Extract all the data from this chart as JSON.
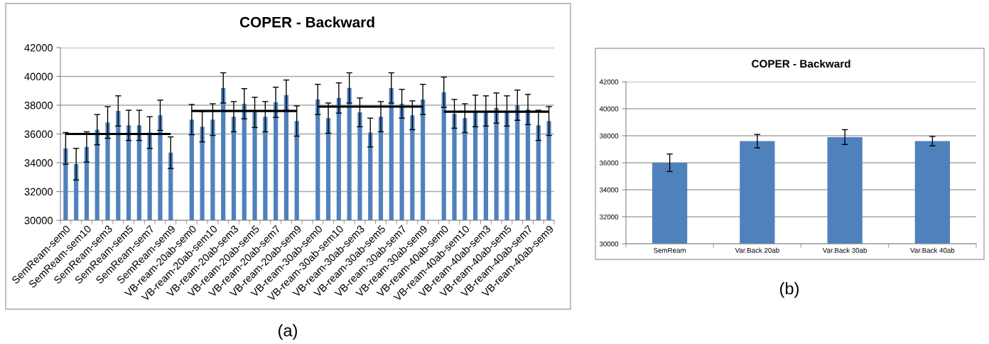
{
  "chart_data": [
    {
      "type": "bar",
      "title": "COPER - Backward",
      "categories": [
        "SemReam-sem0",
        null,
        "SemReam-sem10",
        null,
        "SemReam-sem3",
        null,
        "SemReam-sem5",
        null,
        "SemReam-sem7",
        null,
        "SemReam-sem9",
        null,
        "VB-ream-20ab-sem0",
        null,
        "VB-ream-20ab-sem10",
        null,
        "VB-ream-20ab-sem3",
        null,
        "VB-ream-20ab-sem5",
        null,
        "VB-ream-20ab-sem7",
        null,
        "VB-ream-20ab-sem9",
        null,
        "VB-ream-30ab-sem0",
        null,
        "VB-ream-30ab-sem10",
        null,
        "VB-ream-30ab-sem3",
        null,
        "VB-ream-30ab-sem5",
        null,
        "VB-ream-30ab-sem7",
        null,
        "VB-ream-30ab-sem9",
        null,
        "VB-ream-40ab-sem0",
        null,
        "VB-ream-40ab-sem10",
        null,
        "VB-ream-40ab-sem3",
        null,
        "VB-ream-40ab-sem5",
        null,
        "VB-ream-40ab-sem7",
        null,
        "VB-ream-40ab-sem9"
      ],
      "series": [
        {
          "color": "#4f81bd",
          "values": [
            35000,
            33900,
            35100,
            36300,
            36800,
            37600,
            36600,
            36600,
            36100,
            37300,
            34700,
            null,
            37000,
            36500,
            37000,
            39200,
            37200,
            38100,
            37500,
            37200,
            38200,
            38700,
            36900,
            null,
            38400,
            37100,
            38500,
            39200,
            37500,
            36100,
            37200,
            39200,
            38100,
            37300,
            38400,
            null,
            38900,
            37400,
            37100,
            37600,
            37600,
            37800,
            37600,
            38000,
            37700,
            36600,
            36900
          ],
          "errors": [
            1100,
            1100,
            1050,
            1050,
            1100,
            1050,
            1050,
            1050,
            1100,
            1050,
            1100,
            null,
            1050,
            1050,
            1100,
            1050,
            1050,
            1050,
            1050,
            1050,
            1050,
            1050,
            1050,
            null,
            1050,
            1050,
            1050,
            1050,
            1000,
            1000,
            1050,
            1050,
            1000,
            1000,
            1050,
            null,
            1050,
            1000,
            1000,
            1100,
            1050,
            1050,
            1050,
            1050,
            1050,
            1050,
            1000
          ]
        },
        {
          "type": "line",
          "color": "#000000",
          "values": [
            36000,
            36000,
            36000,
            36000,
            36000,
            36000,
            36000,
            36000,
            36000,
            36000,
            36000,
            null,
            null,
            null,
            null,
            null,
            null,
            null,
            null,
            null,
            null,
            null,
            null,
            null,
            null,
            null,
            null,
            null,
            null,
            null,
            null,
            null,
            null,
            null,
            null,
            null,
            null,
            null,
            null,
            null,
            null,
            null,
            null,
            null,
            null,
            null,
            null
          ]
        },
        {
          "type": "line",
          "color": "#000000",
          "values": [
            null,
            null,
            null,
            null,
            null,
            null,
            null,
            null,
            null,
            null,
            null,
            null,
            37600,
            37600,
            37600,
            37600,
            37600,
            37600,
            37600,
            37600,
            37600,
            37600,
            37600,
            null,
            null,
            null,
            null,
            null,
            null,
            null,
            null,
            null,
            null,
            null,
            null,
            null,
            null,
            null,
            null,
            null,
            null,
            null,
            null,
            null,
            null,
            null,
            null
          ]
        },
        {
          "type": "line",
          "color": "#000000",
          "values": [
            null,
            null,
            null,
            null,
            null,
            null,
            null,
            null,
            null,
            null,
            null,
            null,
            null,
            null,
            null,
            null,
            null,
            null,
            null,
            null,
            null,
            null,
            null,
            null,
            37900,
            37900,
            37900,
            37900,
            37900,
            37900,
            37900,
            37900,
            37900,
            37900,
            37900,
            null,
            null,
            null,
            null,
            null,
            null,
            null,
            null,
            null,
            null,
            null,
            null
          ]
        },
        {
          "type": "line",
          "color": "#000000",
          "values": [
            null,
            null,
            null,
            null,
            null,
            null,
            null,
            null,
            null,
            null,
            null,
            null,
            null,
            null,
            null,
            null,
            null,
            null,
            null,
            null,
            null,
            null,
            null,
            null,
            null,
            null,
            null,
            null,
            null,
            null,
            null,
            null,
            null,
            null,
            null,
            null,
            37550,
            37550,
            37550,
            37550,
            37550,
            37550,
            37550,
            37550,
            37550,
            37550,
            37550
          ]
        }
      ],
      "ylim": [
        30000,
        42000
      ],
      "yticks": [
        30000,
        32000,
        34000,
        36000,
        38000,
        40000,
        42000
      ],
      "grid": "y",
      "annotations": [
        "(a)"
      ]
    },
    {
      "type": "bar",
      "title": "COPER - Backward",
      "categories": [
        "SemReam",
        "Var.Back 20ab",
        "Var.Back 30ab",
        "Var.Back 40ab"
      ],
      "series": [
        {
          "color": "#4f81bd",
          "values": [
            36000,
            37600,
            37900,
            37600
          ],
          "errors": [
            650,
            500,
            550,
            350
          ]
        }
      ],
      "ylim": [
        30000,
        42000
      ],
      "yticks": [
        30000,
        32000,
        34000,
        36000,
        38000,
        40000,
        42000
      ],
      "grid": "y",
      "annotations": [
        "(b)"
      ]
    }
  ]
}
